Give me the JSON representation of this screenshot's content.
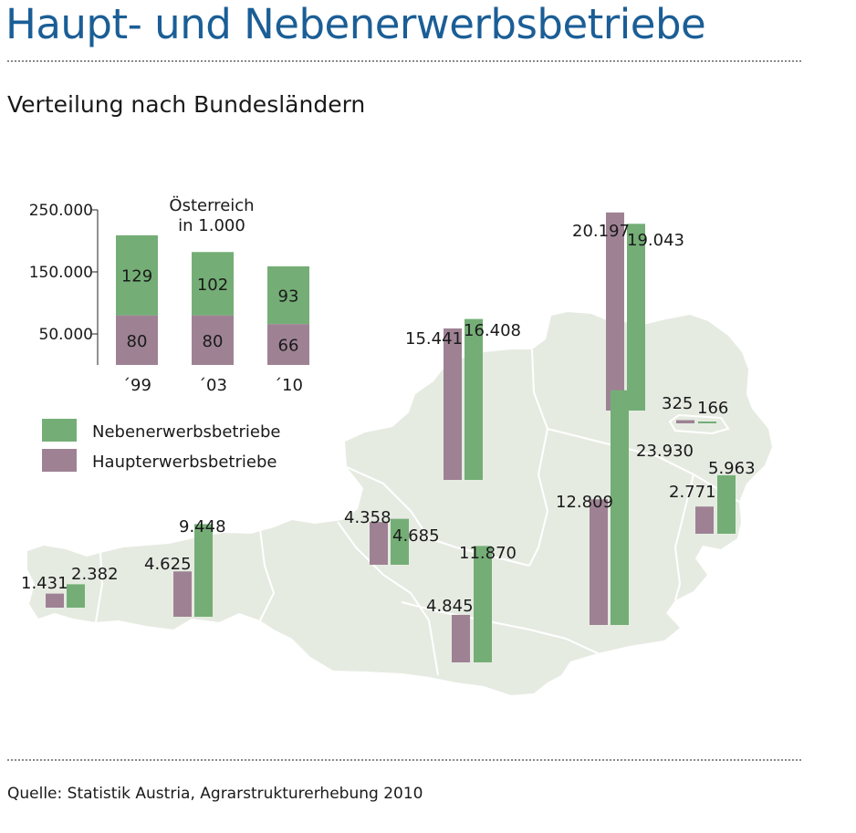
{
  "title": "Haupt- und Nebenerwerbsbetriebe",
  "subtitle": "Verteilung nach Bundesländern",
  "source": "Quelle: Statistik Austria, Agrarstrukturerhebung 2010",
  "colors": {
    "title": "#1b5e96",
    "nebenerwerb": "#74ae76",
    "haupterwerb": "#9e8294",
    "map_fill": "#e6ebe2",
    "map_border": "#ffffff"
  },
  "legend": [
    {
      "label": "Nebenerwerbsbetriebe",
      "color": "#74ae76"
    },
    {
      "label": "Haupterwerbsbetriebe",
      "color": "#9e8294"
    }
  ],
  "chart_data": [
    {
      "type": "bar",
      "stacked": true,
      "title": "Österreich in 1.000",
      "title_lines": [
        "Österreich",
        "in 1.000"
      ],
      "categories": [
        "´99",
        "´03",
        "´10"
      ],
      "y_ticks": [
        "250.000",
        "150.000",
        "50.000"
      ],
      "y_tick_values": [
        250000,
        150000,
        50000
      ],
      "ylim": [
        0,
        250000
      ],
      "series": [
        {
          "name": "Haupterwerbsbetriebe",
          "values": [
            80,
            80,
            66
          ],
          "labels": [
            "80",
            "80",
            "66"
          ]
        },
        {
          "name": "Nebenerwerbsbetriebe",
          "values": [
            129,
            102,
            93
          ],
          "labels": [
            "129",
            "102",
            "93"
          ]
        }
      ],
      "grid": false,
      "legend_position": "below"
    },
    {
      "type": "bar",
      "geography": "map of Austria",
      "series_names": [
        "Haupterwerbsbetriebe",
        "Nebenerwerbsbetriebe"
      ],
      "regions": [
        {
          "haupt": 1431,
          "haupt_label": "1.431",
          "neben": 2382,
          "neben_label": "2.382"
        },
        {
          "haupt": 4625,
          "haupt_label": "4.625",
          "neben": 9448,
          "neben_label": "9.448"
        },
        {
          "haupt": 4358,
          "haupt_label": "4.358",
          "neben": 4685,
          "neben_label": "4.685"
        },
        {
          "haupt": 15441,
          "haupt_label": "15.441",
          "neben": 16408,
          "neben_label": "16.408"
        },
        {
          "haupt": 4845,
          "haupt_label": "4.845",
          "neben": 11870,
          "neben_label": "11.870"
        },
        {
          "haupt": 20197,
          "haupt_label": "20.197",
          "neben": 19043,
          "neben_label": "19.043"
        },
        {
          "haupt": 12809,
          "haupt_label": "12.809",
          "neben": 23930,
          "neben_label": "23.930"
        },
        {
          "haupt": 325,
          "haupt_label": "325",
          "neben": 166,
          "neben_label": "166"
        },
        {
          "haupt": 2771,
          "haupt_label": "2.771",
          "neben": 5963,
          "neben_label": "5.963"
        }
      ]
    }
  ]
}
